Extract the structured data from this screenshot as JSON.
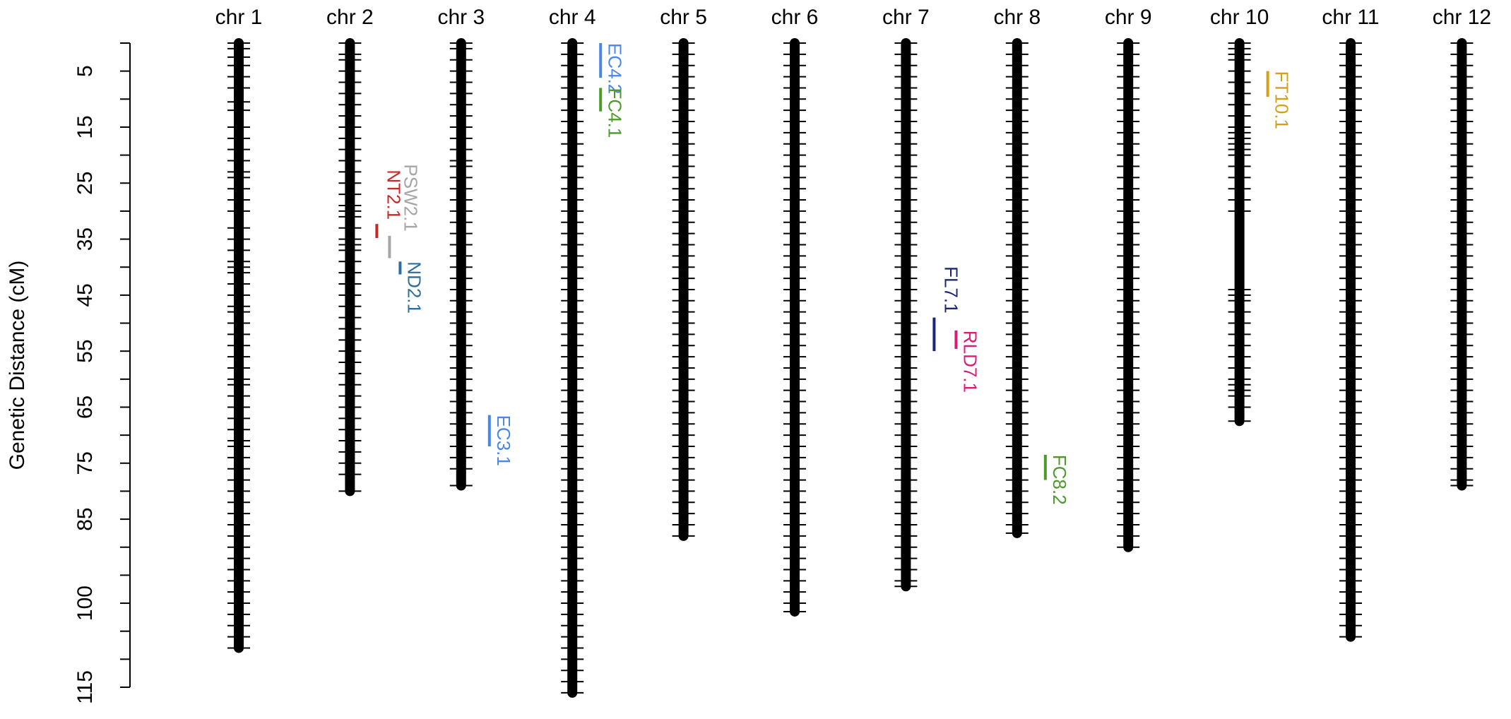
{
  "chart_data": {
    "type": "linkage-map",
    "ylabel": "Genetic Distance (cM)",
    "ylim": [
      0,
      115
    ],
    "yticks": [
      5,
      15,
      25,
      35,
      45,
      55,
      65,
      75,
      85,
      100,
      115
    ],
    "yminor_ticks": [
      0,
      10,
      20,
      30,
      40,
      50,
      60,
      70,
      80,
      90,
      95,
      105,
      110
    ],
    "chromosomes": [
      {
        "name": "chr 1",
        "length": 108,
        "markers": [
          0,
          1,
          2.5,
          4,
          6,
          8,
          10.5,
          12,
          15,
          17,
          19,
          21,
          23,
          24,
          26,
          28,
          30,
          33,
          35,
          37,
          39,
          40,
          41,
          43,
          45,
          47,
          48,
          50,
          52,
          54,
          56,
          58,
          60,
          61,
          63,
          65,
          67,
          69,
          71,
          72,
          74,
          76,
          78,
          80,
          82,
          84,
          86,
          88,
          90,
          92,
          94,
          96,
          98,
          100,
          102,
          104,
          106,
          108
        ],
        "qtls": []
      },
      {
        "name": "chr 2",
        "length": 80,
        "markers": [
          0,
          2,
          3,
          5,
          7,
          9,
          11,
          13,
          15,
          17,
          19,
          21,
          23,
          25,
          27,
          29,
          30,
          31,
          33,
          35,
          36,
          37,
          39,
          41,
          43,
          45,
          47,
          49,
          51,
          53,
          55,
          57,
          59,
          61,
          63,
          65,
          67,
          69,
          71,
          73,
          75,
          77,
          80
        ],
        "qtls": [
          {
            "name": "NT2.1",
            "color": "#c62828",
            "start": 32.3,
            "end": 34.8
          },
          {
            "name": "PSW2.1",
            "color": "#a6a6a6",
            "start": 34.4,
            "end": 38.4
          },
          {
            "name": "ND2.1",
            "color": "#2e6e9e",
            "start": 39,
            "end": 41.3
          }
        ]
      },
      {
        "name": "chr 3",
        "length": 79,
        "markers": [
          0,
          1,
          3,
          5,
          7,
          9,
          11,
          13,
          15,
          17,
          19,
          21,
          22,
          24,
          26,
          28,
          30,
          32,
          34,
          36,
          38,
          40,
          42,
          44,
          46,
          48,
          50,
          52,
          54,
          56,
          58,
          60,
          62,
          64,
          66,
          68,
          70,
          72,
          74,
          76,
          79
        ],
        "qtls": [
          {
            "name": "EC3.1",
            "color": "#4a86e8",
            "start": 66.4,
            "end": 72
          }
        ]
      },
      {
        "name": "chr 4",
        "length": 116,
        "markers": [
          0,
          2,
          4,
          6,
          8,
          10,
          12,
          14,
          16,
          18,
          20,
          22,
          24,
          26,
          28,
          30,
          32,
          34,
          36,
          38,
          40,
          42,
          44,
          46,
          48,
          50,
          52,
          54,
          56,
          58,
          60,
          62,
          64,
          66,
          68,
          70,
          72,
          74,
          76,
          78,
          80,
          82,
          84,
          86,
          88,
          90,
          92,
          94,
          96,
          98,
          100,
          102,
          104,
          106,
          108,
          110,
          112,
          114,
          116
        ],
        "qtls": [
          {
            "name": "EC4.2",
            "color": "#4a86e8",
            "start": 0,
            "end": 6.2
          },
          {
            "name": "FC4.1",
            "color": "#4c9a2a",
            "start": 8,
            "end": 12.2
          }
        ]
      },
      {
        "name": "chr 5",
        "length": 88,
        "markers": [
          0,
          2,
          4,
          6,
          8,
          10,
          12,
          14,
          16,
          18,
          20,
          22,
          24,
          26,
          28,
          30,
          32,
          34,
          36,
          38,
          40,
          42,
          44,
          46,
          48,
          50,
          52,
          54,
          56,
          58,
          60,
          62,
          64,
          66,
          68,
          70,
          72,
          74,
          76,
          78,
          80,
          82,
          84,
          86,
          88
        ],
        "qtls": []
      },
      {
        "name": "chr 6",
        "length": 101.5,
        "markers": [
          0,
          2,
          4,
          6,
          8,
          10,
          12,
          14,
          16,
          18,
          20,
          22,
          24,
          26,
          28,
          30,
          32,
          34,
          36,
          38,
          40,
          42,
          44,
          46,
          48,
          50,
          52,
          54,
          56,
          58,
          60,
          62,
          64,
          66,
          68,
          70,
          72,
          74,
          76,
          78,
          80,
          82,
          84,
          86,
          88,
          90,
          92,
          94,
          96,
          98,
          100,
          101.5
        ],
        "qtls": []
      },
      {
        "name": "chr 7",
        "length": 97,
        "markers": [
          0,
          2,
          4,
          6,
          8,
          10,
          12,
          14,
          16,
          18,
          20,
          22,
          24,
          26,
          28,
          30,
          32,
          34,
          36,
          38,
          40,
          42,
          44,
          46,
          48,
          50,
          52,
          54,
          56,
          58,
          60,
          62,
          64,
          66,
          68,
          70,
          72,
          74,
          76,
          78,
          80,
          82,
          84,
          86,
          88,
          90,
          92,
          94,
          96,
          97
        ],
        "qtls": [
          {
            "name": "FL7.1",
            "color": "#1a237e",
            "start": 49,
            "end": 55
          },
          {
            "name": "RLD7.1",
            "color": "#d81b77",
            "start": 51.3,
            "end": 54.6
          }
        ]
      },
      {
        "name": "chr 8",
        "length": 87.5,
        "markers": [
          0,
          2,
          4,
          6,
          8,
          10,
          12,
          14,
          16,
          18,
          20,
          22,
          24,
          26,
          28,
          30,
          32,
          34,
          36,
          38,
          40,
          42,
          44,
          46,
          48,
          50,
          52,
          54,
          56,
          58,
          60,
          62,
          64,
          66,
          68,
          70,
          72,
          74,
          76,
          78,
          80,
          82,
          84,
          86,
          87.5
        ],
        "qtls": [
          {
            "name": "FC8.2",
            "color": "#4c9a2a",
            "start": 73.5,
            "end": 78
          }
        ]
      },
      {
        "name": "chr 9",
        "length": 90,
        "markers": [
          0,
          2,
          4,
          6,
          8,
          10,
          12,
          14,
          16,
          18,
          20,
          22,
          24,
          26,
          28,
          30,
          32,
          34,
          36,
          38,
          40,
          42,
          44,
          46,
          48,
          50,
          52,
          54,
          56,
          58,
          60,
          62,
          64,
          66,
          68,
          70,
          72,
          74,
          76,
          78,
          80,
          82,
          84,
          86,
          88,
          90
        ],
        "qtls": []
      },
      {
        "name": "chr 10",
        "length": 67.5,
        "markers": [
          0,
          1,
          2,
          3,
          5,
          7,
          9,
          11,
          13,
          15,
          16,
          17,
          18,
          19,
          20,
          22,
          24,
          26,
          28,
          30,
          44,
          45,
          46,
          48,
          50,
          52,
          54,
          56,
          58,
          60,
          61,
          62,
          63,
          65,
          67.5
        ],
        "qtls": [
          {
            "name": "FT10.1",
            "color": "#d4a017",
            "start": 5,
            "end": 9.6
          }
        ]
      },
      {
        "name": "chr 11",
        "length": 106,
        "markers": [
          0,
          2,
          4,
          6,
          8,
          10,
          12,
          14,
          16,
          18,
          20,
          22,
          24,
          26,
          28,
          30,
          32,
          34,
          36,
          38,
          40,
          42,
          44,
          46,
          48,
          50,
          52,
          54,
          56,
          58,
          60,
          62,
          64,
          66,
          68,
          70,
          72,
          74,
          76,
          78,
          80,
          82,
          84,
          86,
          88,
          90,
          92,
          94,
          96,
          98,
          100,
          102,
          104,
          106
        ],
        "qtls": []
      },
      {
        "name": "chr 12",
        "length": 79,
        "markers": [
          0,
          2,
          4,
          6,
          8,
          10,
          12,
          14,
          16,
          18,
          20,
          22,
          24,
          26,
          28,
          30,
          32,
          34,
          36,
          38,
          40,
          42,
          44,
          46,
          48,
          50,
          52,
          54,
          56,
          58,
          60,
          62,
          64,
          66,
          68,
          70,
          72,
          74,
          76,
          78,
          79
        ],
        "qtls": []
      }
    ]
  }
}
